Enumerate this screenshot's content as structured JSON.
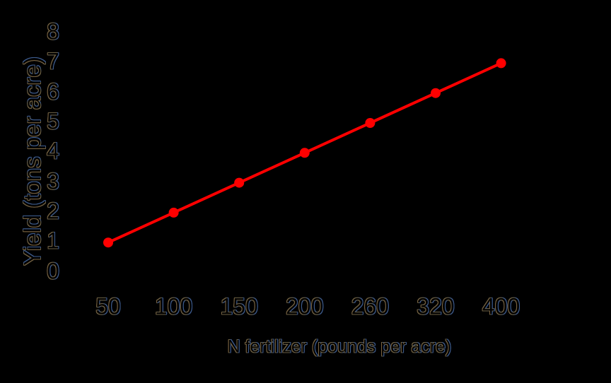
{
  "chart_data": {
    "type": "line",
    "title": "",
    "categories": [
      "50",
      "100",
      "150",
      "200",
      "260",
      "320",
      "400"
    ],
    "series": [
      {
        "name": "yield",
        "values": [
          1,
          2,
          3,
          4,
          5,
          6,
          7
        ],
        "color": "#ff0000",
        "marker": "circle"
      }
    ],
    "xlabel": "N fertilizer (pounds per acre)",
    "ylabel": "Yield (tons per acre)",
    "y_ticks": [
      0,
      1,
      2,
      3,
      4,
      5,
      6,
      7,
      8
    ],
    "ylim": [
      0,
      8
    ],
    "grid": false,
    "legend": "none",
    "layout_hints": {
      "x_axis_spacing": "categorical-even",
      "axes_visible": false
    },
    "style": {
      "background_color": "#000000",
      "line_color": "#ff0000",
      "text_fill_color": "#000000",
      "text_outline_warm": "#7a6340",
      "text_outline_cool": "#3f5f93"
    }
  }
}
